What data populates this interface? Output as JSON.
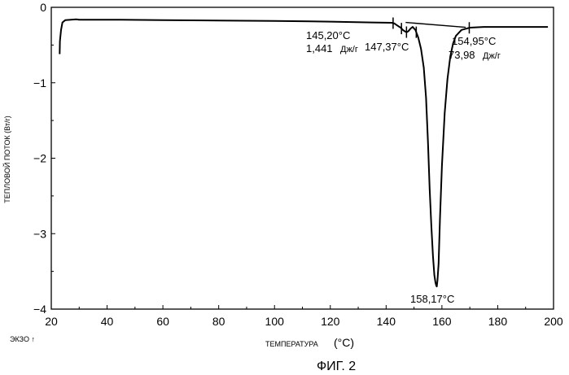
{
  "chart_data": {
    "type": "line",
    "title": "",
    "caption": "ФИГ. 2",
    "xlabel": "ТЕМПЕРАТУРА",
    "xlabel_unit": "(°C)",
    "ylabel": "ТЕПЛОВОЙ ПОТОК (Вт/г)",
    "exo_label": "ЭКЗО ↑",
    "xlim": [
      20,
      200
    ],
    "ylim": [
      -4,
      0
    ],
    "x_ticks": [
      20,
      40,
      60,
      80,
      100,
      120,
      140,
      160,
      180,
      200
    ],
    "y_ticks": [
      0,
      -1,
      -2,
      -3,
      -4
    ],
    "y_tick_labels": [
      "0",
      "−1",
      "−2",
      "−3",
      "−4"
    ],
    "grid": false,
    "series": [
      {
        "x": [
          23.0,
          23.1,
          23.5,
          24.0,
          25,
          27,
          29,
          30,
          35,
          45,
          60,
          80,
          100,
          120,
          135,
          142,
          143,
          144,
          145.2,
          146,
          146.8,
          147.37,
          148,
          148.8,
          149.5,
          150.5,
          151.5,
          152.5,
          153.5,
          154.3,
          155,
          155.6,
          156.2,
          156.8,
          157.3,
          157.7,
          158.0,
          158.17,
          158.4,
          158.8,
          159.3,
          160,
          161,
          162,
          163,
          164,
          165,
          167,
          170,
          175,
          180,
          190,
          198
        ],
        "y": [
          -0.62,
          -0.45,
          -0.3,
          -0.2,
          -0.17,
          -0.165,
          -0.16,
          -0.165,
          -0.165,
          -0.165,
          -0.17,
          -0.175,
          -0.18,
          -0.19,
          -0.2,
          -0.205,
          -0.215,
          -0.24,
          -0.27,
          -0.3,
          -0.32,
          -0.33,
          -0.315,
          -0.28,
          -0.26,
          -0.3,
          -0.4,
          -0.55,
          -0.8,
          -1.2,
          -1.8,
          -2.4,
          -2.9,
          -3.3,
          -3.55,
          -3.65,
          -3.69,
          -3.7,
          -3.62,
          -3.4,
          -2.8,
          -2.1,
          -1.4,
          -0.95,
          -0.65,
          -0.48,
          -0.38,
          -0.3,
          -0.27,
          -0.26,
          -0.26,
          -0.26,
          -0.26
        ]
      }
    ],
    "baselines": [
      {
        "x": [
          147.0,
          168.5
        ],
        "y": [
          -0.2,
          -0.265
        ]
      }
    ],
    "annotations": [
      {
        "temp": "145,20°C",
        "enthalpy": "1,441",
        "unit": "Дж/г"
      },
      {
        "temp": "147,37°C"
      },
      {
        "temp": "154,95°C",
        "enthalpy": "73,98",
        "unit": "Дж/г"
      },
      {
        "temp": "158,17°C"
      }
    ],
    "markers_x": [
      142.5,
      145.5,
      147.3,
      150.8,
      154.4,
      169.8
    ]
  }
}
